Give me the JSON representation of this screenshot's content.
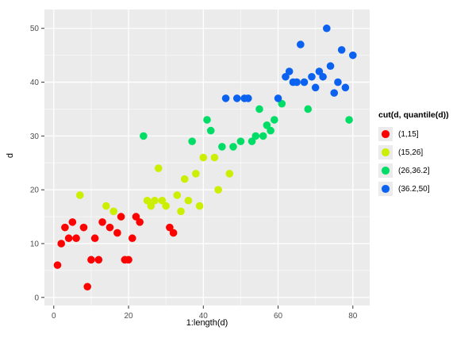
{
  "figure": {
    "background": "#FFFFFF",
    "panel_background": "#EBEBEB",
    "grid_major_color": "#FFFFFF",
    "grid_minor_color": "#FFFFFF",
    "axis_text_color": "#4D4D4D",
    "tick_mark_color": "#333333"
  },
  "chart_data": {
    "type": "scatter",
    "title": "",
    "xlabel": "1:length(d)",
    "ylabel": "d",
    "xlim": [
      -2.5,
      84.5
    ],
    "ylim": [
      -1.5,
      53.5
    ],
    "x_ticks": [
      0,
      20,
      40,
      60,
      80
    ],
    "y_ticks": [
      0,
      10,
      20,
      30,
      40,
      50
    ],
    "grid": true,
    "point_radius": 4.8,
    "legend": {
      "title": "cut(d, quantile(d))",
      "position": "right",
      "entries": [
        {
          "label": "(1,15]",
          "color": "#FF0000"
        },
        {
          "label": "(15,26]",
          "color": "#CCEE00"
        },
        {
          "label": "(26,36.2]",
          "color": "#00DD66"
        },
        {
          "label": "(36.2,50]",
          "color": "#0B62F0"
        }
      ]
    },
    "series": [
      {
        "name": "(1,15]",
        "color": "#FF0000",
        "points": [
          [
            1,
            6
          ],
          [
            2,
            10
          ],
          [
            3,
            13
          ],
          [
            4,
            11
          ],
          [
            5,
            14
          ],
          [
            6,
            11
          ],
          [
            8,
            13
          ],
          [
            9,
            2
          ],
          [
            10,
            7
          ],
          [
            11,
            11
          ],
          [
            12,
            7
          ],
          [
            13,
            14
          ],
          [
            15,
            13
          ],
          [
            17,
            12
          ],
          [
            18,
            15
          ],
          [
            19,
            7
          ],
          [
            20,
            7
          ],
          [
            21,
            11
          ],
          [
            22,
            15
          ],
          [
            23,
            14
          ],
          [
            31,
            13
          ],
          [
            32,
            12
          ]
        ]
      },
      {
        "name": "(15,26]",
        "color": "#CCEE00",
        "points": [
          [
            7,
            19
          ],
          [
            14,
            17
          ],
          [
            16,
            16
          ],
          [
            25,
            18
          ],
          [
            26,
            17
          ],
          [
            27,
            18
          ],
          [
            28,
            24
          ],
          [
            29,
            18
          ],
          [
            30,
            17
          ],
          [
            33,
            19
          ],
          [
            34,
            16
          ],
          [
            35,
            22
          ],
          [
            36,
            18
          ],
          [
            38,
            23
          ],
          [
            39,
            17
          ],
          [
            40,
            26
          ],
          [
            43,
            26
          ],
          [
            44,
            20
          ],
          [
            47,
            23
          ]
        ]
      },
      {
        "name": "(26,36.2]",
        "color": "#00DD66",
        "points": [
          [
            24,
            30
          ],
          [
            37,
            29
          ],
          [
            41,
            33
          ],
          [
            42,
            31
          ],
          [
            45,
            28
          ],
          [
            48,
            28
          ],
          [
            50,
            29
          ],
          [
            53,
            29
          ],
          [
            54,
            30
          ],
          [
            55,
            35
          ],
          [
            56,
            30
          ],
          [
            57,
            32
          ],
          [
            58,
            31
          ],
          [
            59,
            33
          ],
          [
            61,
            36
          ],
          [
            68,
            35
          ],
          [
            79,
            33
          ]
        ]
      },
      {
        "name": "(36.2,50]",
        "color": "#0B62F0",
        "points": [
          [
            46,
            37
          ],
          [
            49,
            37
          ],
          [
            51,
            37
          ],
          [
            52,
            37
          ],
          [
            60,
            37
          ],
          [
            62,
            41
          ],
          [
            63,
            42
          ],
          [
            64,
            40
          ],
          [
            65,
            40
          ],
          [
            66,
            47
          ],
          [
            67,
            40
          ],
          [
            69,
            41
          ],
          [
            70,
            39
          ],
          [
            71,
            42
          ],
          [
            72,
            41
          ],
          [
            73,
            50
          ],
          [
            74,
            43
          ],
          [
            75,
            38
          ],
          [
            76,
            40
          ],
          [
            77,
            46
          ],
          [
            78,
            39
          ],
          [
            80,
            45
          ]
        ]
      }
    ]
  }
}
